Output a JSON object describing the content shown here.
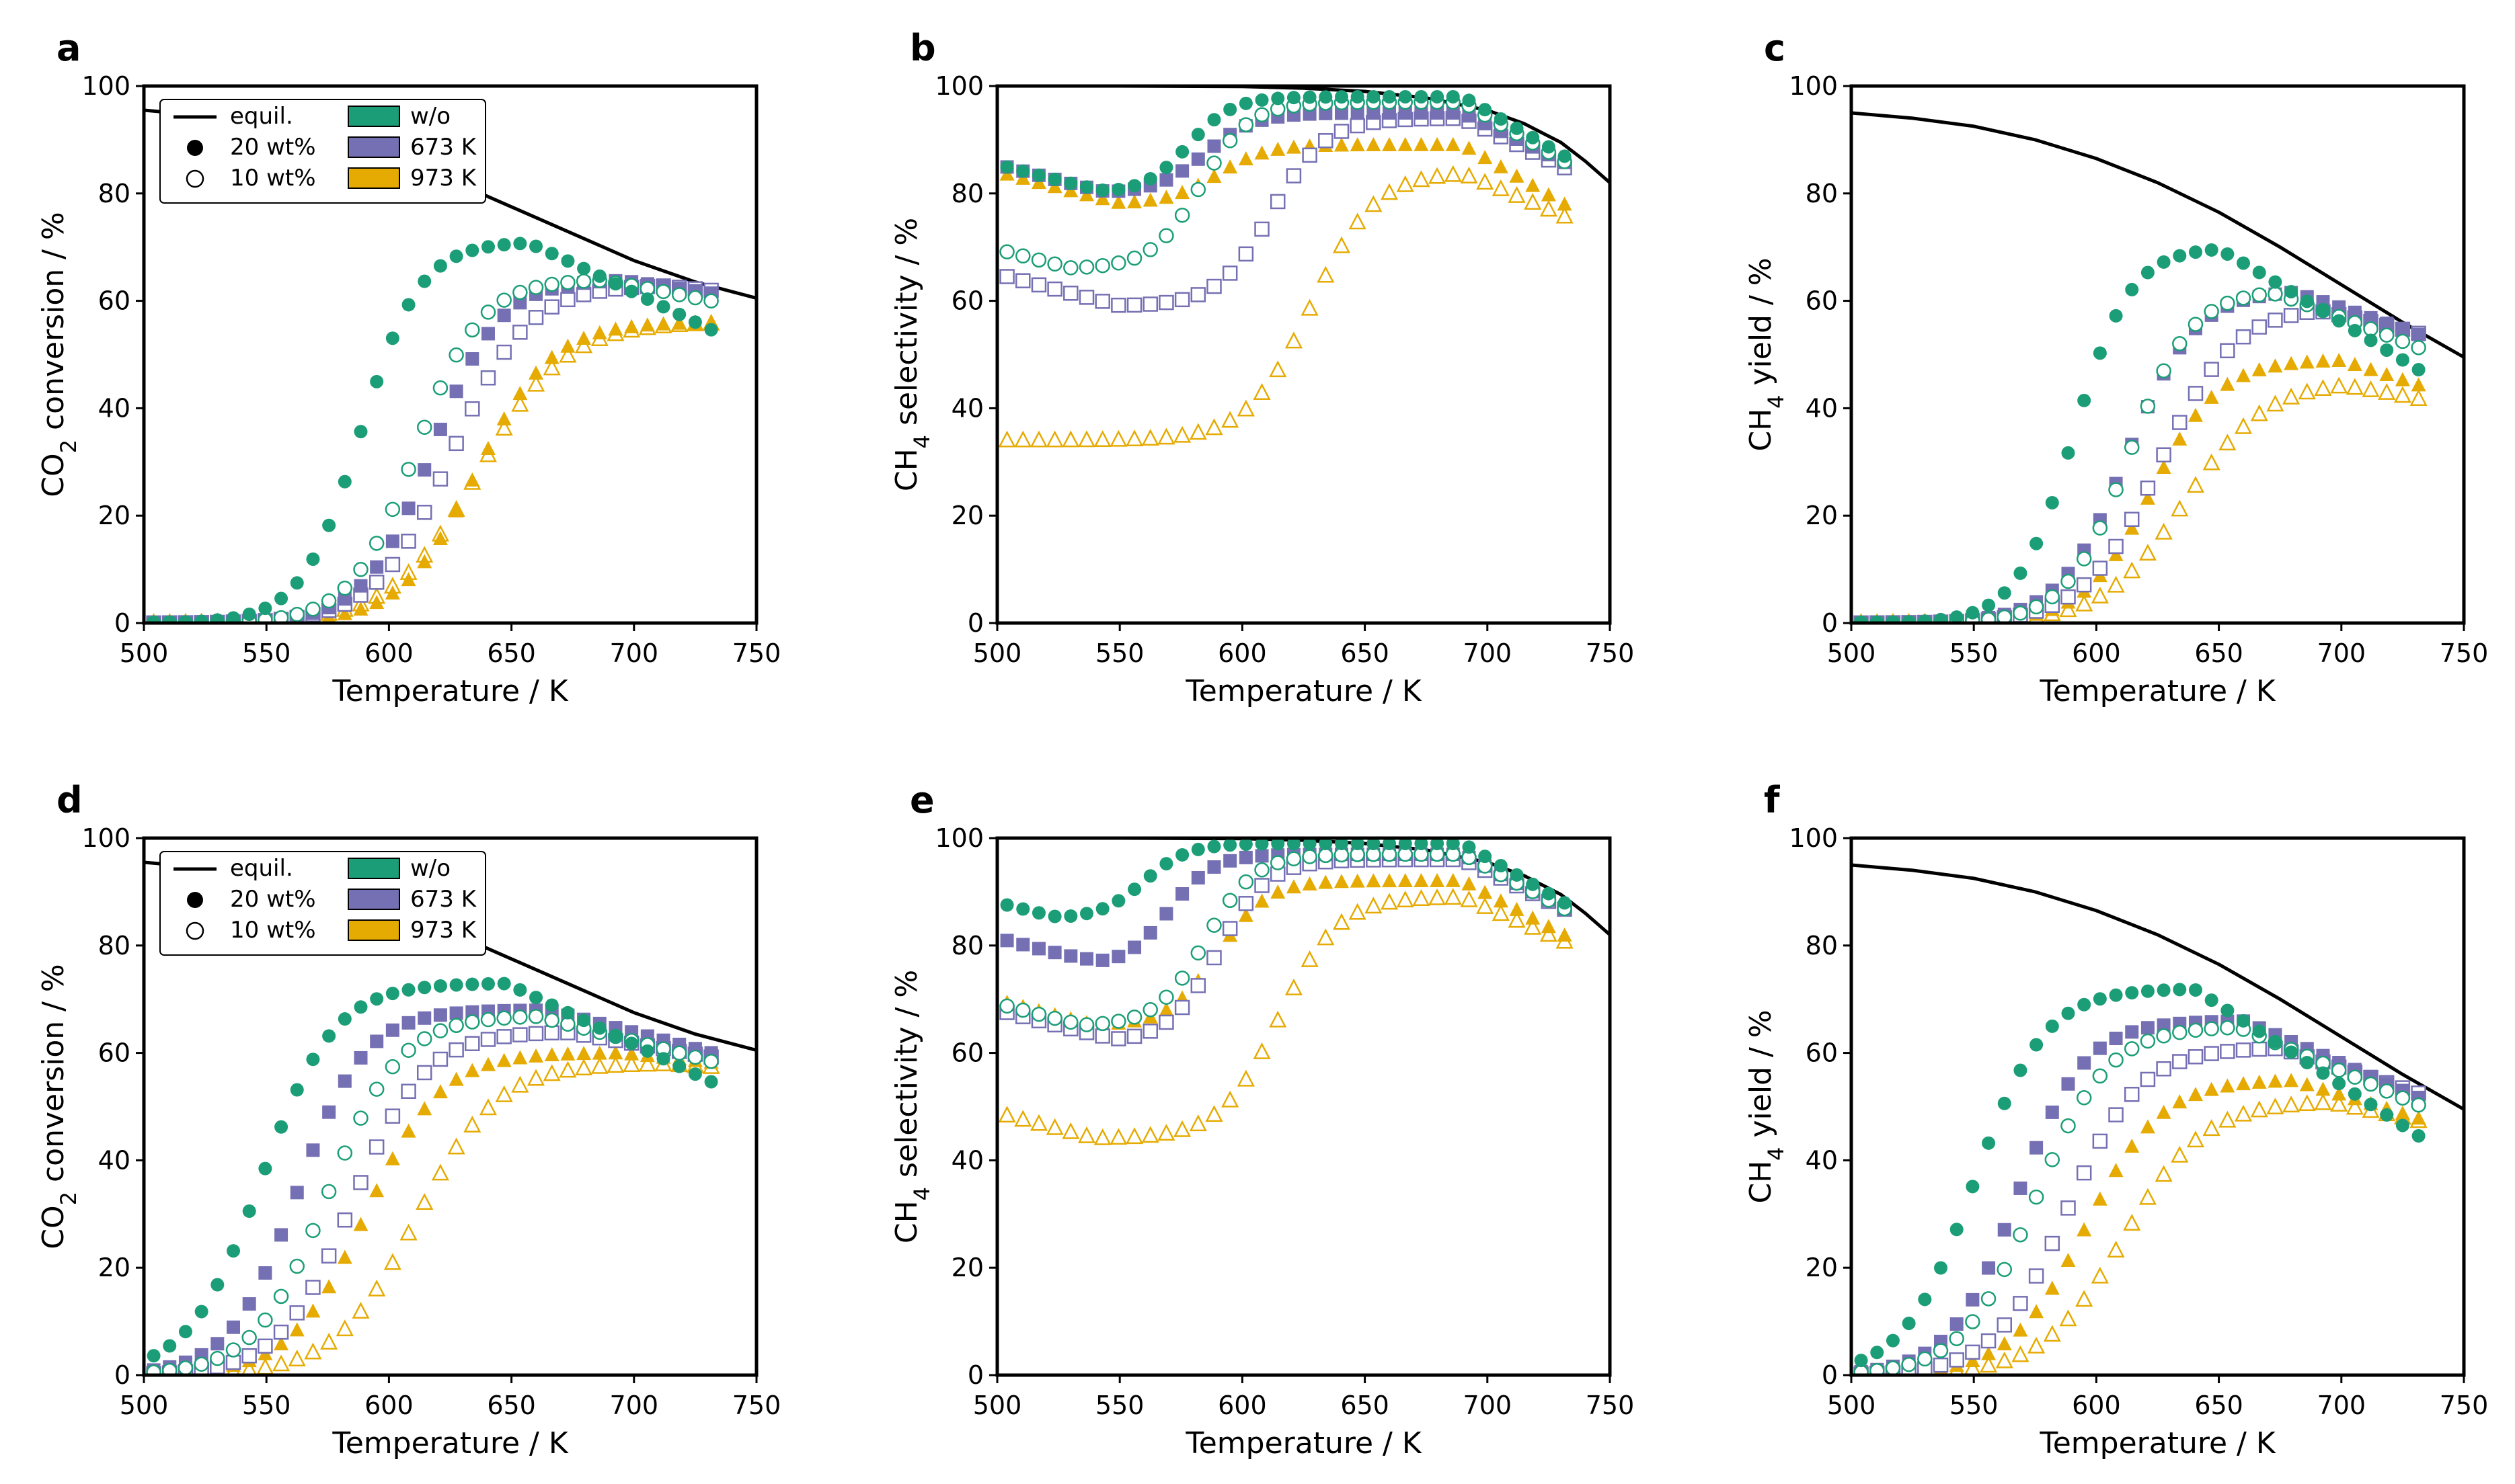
{
  "colors": {
    "wo": "#1b9e77",
    "k673": "#7570b3",
    "k973": "#e6ab02",
    "equil": "#000000"
  },
  "legend": {
    "equil": "equil.",
    "wt20": "20 wt%",
    "wt10": "10 wt%",
    "wo": "w/o",
    "k673": "673 K",
    "k973": "973 K"
  },
  "chart_data": [
    {
      "type": "scatter",
      "panel": "a",
      "title": "",
      "xlabel": "Temperature / K",
      "ylabel": "CO2 conversion / %",
      "xlim": [
        500,
        750
      ],
      "ylim": [
        0,
        100
      ],
      "xticks": [
        "500",
        "550",
        "600",
        "650",
        "700",
        "750"
      ],
      "yticks": [
        "0",
        "20",
        "40",
        "60",
        "80",
        "100"
      ],
      "equil": {
        "x": [
          500,
          525,
          550,
          575,
          600,
          625,
          650,
          675,
          700,
          725,
          750
        ],
        "y": [
          95.5,
          94.5,
          92.8,
          90.4,
          87,
          82.5,
          77.5,
          72.5,
          67.5,
          63.5,
          60.5
        ]
      },
      "series": [
        {
          "name": "w/o 20 wt%",
          "color": "wo",
          "shape": "circle",
          "filled": true,
          "peak": 639,
          "ymax": 71,
          "width": 22,
          "hi": 657,
          "dec": 0.22
        },
        {
          "name": "w/o 10 wt%",
          "color": "wo",
          "shape": "circle",
          "filled": false,
          "peak": 666,
          "ymax": 64,
          "width": 24,
          "hi": 687,
          "dec": 0.09
        },
        {
          "name": "673 K 20 wt%",
          "color": "k673",
          "shape": "square",
          "filled": true,
          "peak": 675,
          "ymax": 64,
          "width": 25,
          "hi": 695,
          "dec": 0.07
        },
        {
          "name": "673 K 10 wt%",
          "color": "k673",
          "shape": "square",
          "filled": false,
          "peak": 690,
          "ymax": 63,
          "width": 28,
          "hi": 712,
          "dec": 0.05
        },
        {
          "name": "973 K 20 wt%",
          "color": "k973",
          "shape": "triangle",
          "filled": true,
          "peak": 700,
          "ymax": 56,
          "width": 28,
          "hi": 718,
          "dec": 0.02
        },
        {
          "name": "973 K 10 wt%",
          "color": "k973",
          "shape": "triangle",
          "filled": false,
          "peak": 710,
          "ymax": 56,
          "width": 32,
          "hi": 732,
          "dec": 0.01
        }
      ]
    },
    {
      "type": "scatter",
      "panel": "b",
      "title": "",
      "xlabel": "Temperature / K",
      "ylabel": "CH4 selectivity / %",
      "xlim": [
        500,
        750
      ],
      "ylim": [
        0,
        100
      ],
      "xticks": [
        "500",
        "550",
        "600",
        "650",
        "700",
        "750"
      ],
      "yticks": [
        "0",
        "20",
        "40",
        "60",
        "80",
        "100"
      ],
      "equil": {
        "x": [
          500,
          550,
          600,
          625,
          650,
          675,
          700,
          715,
          730,
          740,
          750
        ],
        "y": [
          100,
          100,
          99.9,
          99.6,
          99,
          97.8,
          95.5,
          93,
          89.5,
          86,
          82
        ]
      },
      "series": [
        {
          "name": "w/o 20 wt%",
          "color": "wo",
          "shape": "circle",
          "filled": true,
          "low": 80,
          "lowPt": 545,
          "high": 98,
          "mid": 578,
          "w": 9,
          "fall": 12
        },
        {
          "name": "w/o 10 wt%",
          "color": "wo",
          "shape": "circle",
          "filled": false,
          "low": 66,
          "lowPt": 530,
          "high": 97,
          "mid": 583,
          "w": 10,
          "fall": 12
        },
        {
          "name": "673 K 20 wt%",
          "color": "k673",
          "shape": "square",
          "filled": true,
          "low": 80,
          "lowPt": 545,
          "high": 95,
          "mid": 585,
          "w": 10,
          "fall": 10
        },
        {
          "name": "673 K 10 wt%",
          "color": "k673",
          "shape": "square",
          "filled": false,
          "low": 59,
          "lowPt": 550,
          "high": 94,
          "mid": 612,
          "w": 11,
          "fall": 10
        },
        {
          "name": "973 K 20 wt%",
          "color": "k973",
          "shape": "triangle",
          "filled": true,
          "low": 78,
          "lowPt": 550,
          "high": 89,
          "mid": 590,
          "w": 10,
          "fall": 12
        },
        {
          "name": "973 K 10 wt%",
          "color": "k973",
          "shape": "triangle",
          "filled": false,
          "low": 34,
          "lowPt": 500,
          "high": 84,
          "mid": 628,
          "w": 13,
          "fall": 9
        }
      ]
    },
    {
      "type": "scatter",
      "panel": "c",
      "title": "",
      "xlabel": "Temperature / K",
      "ylabel": "CH4 yield / %",
      "xlim": [
        500,
        750
      ],
      "ylim": [
        0,
        100
      ],
      "xticks": [
        "500",
        "550",
        "600",
        "650",
        "700",
        "750"
      ],
      "yticks": [
        "0",
        "20",
        "40",
        "60",
        "80",
        "100"
      ],
      "equil": {
        "x": [
          500,
          525,
          550,
          575,
          600,
          625,
          650,
          675,
          700,
          725,
          750
        ],
        "y": [
          95,
          94,
          92.5,
          90,
          86.5,
          82,
          76.5,
          70,
          63,
          56,
          49.5
        ]
      },
      "series": [
        {
          "name": "w/o 20 wt%",
          "color": "wo",
          "shape": "circle",
          "filled": true,
          "peak": 639,
          "ymax": 70,
          "width": 21,
          "hi": 650,
          "dec": 0.28
        },
        {
          "name": "w/o 10 wt%",
          "color": "wo",
          "shape": "circle",
          "filled": false,
          "peak": 666,
          "ymax": 62,
          "width": 23,
          "hi": 672,
          "dec": 0.18
        },
        {
          "name": "673 K 20 wt%",
          "color": "k673",
          "shape": "square",
          "filled": true,
          "peak": 670,
          "ymax": 62,
          "width": 25,
          "hi": 680,
          "dec": 0.16
        },
        {
          "name": "673 K 10 wt%",
          "color": "k673",
          "shape": "square",
          "filled": false,
          "peak": 690,
          "ymax": 59,
          "width": 28,
          "hi": 690,
          "dec": 0.12
        },
        {
          "name": "973 K 20 wt%",
          "color": "k973",
          "shape": "triangle",
          "filled": true,
          "peak": 680,
          "ymax": 49,
          "width": 25,
          "hi": 700,
          "dec": 0.15
        },
        {
          "name": "973 K 10 wt%",
          "color": "k973",
          "shape": "triangle",
          "filled": false,
          "peak": 705,
          "ymax": 45,
          "width": 30,
          "hi": 700,
          "dec": 0.1
        }
      ]
    },
    {
      "type": "scatter",
      "panel": "d",
      "title": "",
      "xlabel": "Temperature / K",
      "ylabel": "CO2 conversion / %",
      "xlim": [
        500,
        750
      ],
      "ylim": [
        0,
        100
      ],
      "xticks": [
        "500",
        "550",
        "600",
        "650",
        "700",
        "750"
      ],
      "yticks": [
        "0",
        "20",
        "40",
        "60",
        "80",
        "100"
      ],
      "equil": {
        "x": [
          500,
          525,
          550,
          575,
          600,
          625,
          650,
          675,
          700,
          725,
          750
        ],
        "y": [
          95.5,
          94.5,
          92.8,
          90.4,
          87,
          82.5,
          77.5,
          72.5,
          67.5,
          63.5,
          60.5
        ]
      },
      "series": [
        {
          "name": "w/o 20 wt%",
          "color": "wo",
          "shape": "circle",
          "filled": true,
          "peak": 610,
          "ymax": 73,
          "width": 27,
          "hi": 648,
          "dec": 0.22
        },
        {
          "name": "w/o 10 wt%",
          "color": "wo",
          "shape": "circle",
          "filled": false,
          "peak": 637,
          "ymax": 67,
          "width": 27,
          "hi": 660,
          "dec": 0.12
        },
        {
          "name": "673 K 20 wt%",
          "color": "k673",
          "shape": "square",
          "filled": true,
          "peak": 620,
          "ymax": 68,
          "width": 25,
          "hi": 665,
          "dec": 0.12
        },
        {
          "name": "673 K 10 wt%",
          "color": "k673",
          "shape": "square",
          "filled": false,
          "peak": 647,
          "ymax": 64,
          "width": 27,
          "hi": 672,
          "dec": 0.08
        },
        {
          "name": "973 K 20 wt%",
          "color": "k973",
          "shape": "triangle",
          "filled": true,
          "peak": 655,
          "ymax": 60,
          "width": 28,
          "hi": 695,
          "dec": 0.05
        },
        {
          "name": "973 K 10 wt%",
          "color": "k973",
          "shape": "triangle",
          "filled": false,
          "peak": 680,
          "ymax": 58,
          "width": 30,
          "hi": 712,
          "dec": 0.03
        }
      ]
    },
    {
      "type": "scatter",
      "panel": "e",
      "title": "",
      "xlabel": "Temperature / K",
      "ylabel": "CH4 selectivity / %",
      "xlim": [
        500,
        750
      ],
      "ylim": [
        0,
        100
      ],
      "xticks": [
        "500",
        "550",
        "600",
        "650",
        "700",
        "750"
      ],
      "yticks": [
        "0",
        "20",
        "40",
        "60",
        "80",
        "100"
      ],
      "equil": {
        "x": [
          500,
          550,
          600,
          625,
          650,
          675,
          700,
          715,
          730,
          740,
          750
        ],
        "y": [
          100,
          100,
          99.9,
          99.6,
          99,
          97.8,
          95.5,
          93,
          89.5,
          86,
          82
        ]
      },
      "series": [
        {
          "name": "w/o 20 wt%",
          "color": "wo",
          "shape": "circle",
          "filled": true,
          "low": 85,
          "lowPt": 525,
          "high": 99,
          "mid": 560,
          "w": 9,
          "fall": 12
        },
        {
          "name": "w/o 10 wt%",
          "color": "wo",
          "shape": "circle",
          "filled": false,
          "low": 65,
          "lowPt": 535,
          "high": 97,
          "mid": 585,
          "w": 10,
          "fall": 11
        },
        {
          "name": "673 K 20 wt%",
          "color": "k673",
          "shape": "square",
          "filled": true,
          "low": 76,
          "lowPt": 545,
          "high": 97,
          "mid": 570,
          "w": 9,
          "fall": 11
        },
        {
          "name": "673 K 10 wt%",
          "color": "k673",
          "shape": "square",
          "filled": false,
          "low": 62,
          "lowPt": 550,
          "high": 96,
          "mid": 590,
          "w": 10,
          "fall": 10
        },
        {
          "name": "973 K 20 wt%",
          "color": "k973",
          "shape": "triangle",
          "filled": true,
          "low": 65,
          "lowPt": 540,
          "high": 92,
          "mid": 590,
          "w": 10,
          "fall": 11
        },
        {
          "name": "973 K 10 wt%",
          "color": "k973",
          "shape": "triangle",
          "filled": false,
          "low": 44,
          "lowPt": 540,
          "high": 89,
          "mid": 615,
          "w": 12,
          "fall": 9
        }
      ]
    },
    {
      "type": "scatter",
      "panel": "f",
      "title": "",
      "xlabel": "Temperature / K",
      "ylabel": "CH4 yield / %",
      "xlim": [
        500,
        750
      ],
      "ylim": [
        0,
        100
      ],
      "xticks": [
        "500",
        "550",
        "600",
        "650",
        "700",
        "750"
      ],
      "yticks": [
        "0",
        "20",
        "40",
        "60",
        "80",
        "100"
      ],
      "equil": {
        "x": [
          500,
          525,
          550,
          575,
          600,
          625,
          650,
          675,
          700,
          725,
          750
        ],
        "y": [
          95,
          94,
          92.5,
          90,
          86.5,
          82,
          76.5,
          70,
          63,
          56,
          49.5
        ]
      },
      "series": [
        {
          "name": "w/o 20 wt%",
          "color": "wo",
          "shape": "circle",
          "filled": true,
          "peak": 610,
          "ymax": 72,
          "width": 26,
          "hi": 640,
          "dec": 0.3
        },
        {
          "name": "w/o 10 wt%",
          "color": "wo",
          "shape": "circle",
          "filled": false,
          "peak": 637,
          "ymax": 65,
          "width": 27,
          "hi": 658,
          "dec": 0.2
        },
        {
          "name": "673 K 20 wt%",
          "color": "k673",
          "shape": "square",
          "filled": true,
          "peak": 625,
          "ymax": 66,
          "width": 25,
          "hi": 660,
          "dec": 0.2
        },
        {
          "name": "673 K 10 wt%",
          "color": "k673",
          "shape": "square",
          "filled": false,
          "peak": 650,
          "ymax": 61,
          "width": 27,
          "hi": 675,
          "dec": 0.15
        },
        {
          "name": "973 K 20 wt%",
          "color": "k973",
          "shape": "triangle",
          "filled": true,
          "peak": 660,
          "ymax": 55,
          "width": 28,
          "hi": 680,
          "dec": 0.14
        },
        {
          "name": "973 K 10 wt%",
          "color": "k973",
          "shape": "triangle",
          "filled": false,
          "peak": 680,
          "ymax": 51,
          "width": 30,
          "hi": 695,
          "dec": 0.1
        }
      ]
    }
  ]
}
